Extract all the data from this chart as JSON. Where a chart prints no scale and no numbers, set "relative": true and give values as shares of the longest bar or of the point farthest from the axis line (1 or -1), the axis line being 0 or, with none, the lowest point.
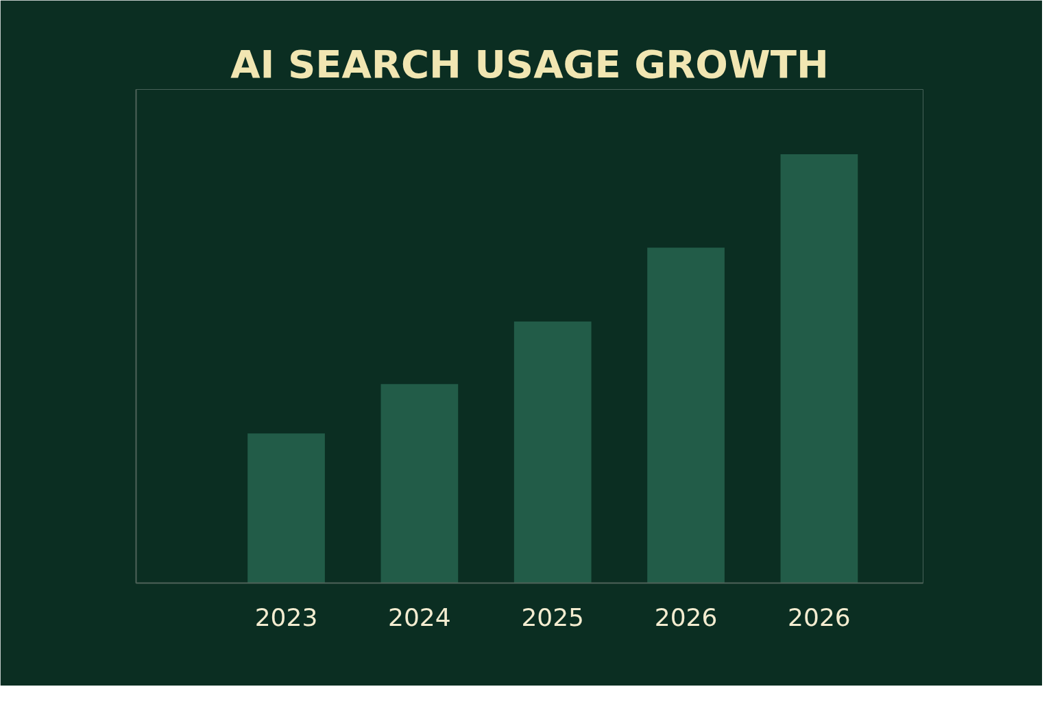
{
  "chart_data": {
    "type": "bar",
    "title": "AI SEARCH USAGE GROWTH",
    "categories": [
      "2023",
      "2024",
      "2025",
      "2026",
      "2026"
    ],
    "values": [
      0.349,
      0.464,
      0.61,
      0.782,
      1
    ],
    "color": "#225c48",
    "relative": true
  }
}
